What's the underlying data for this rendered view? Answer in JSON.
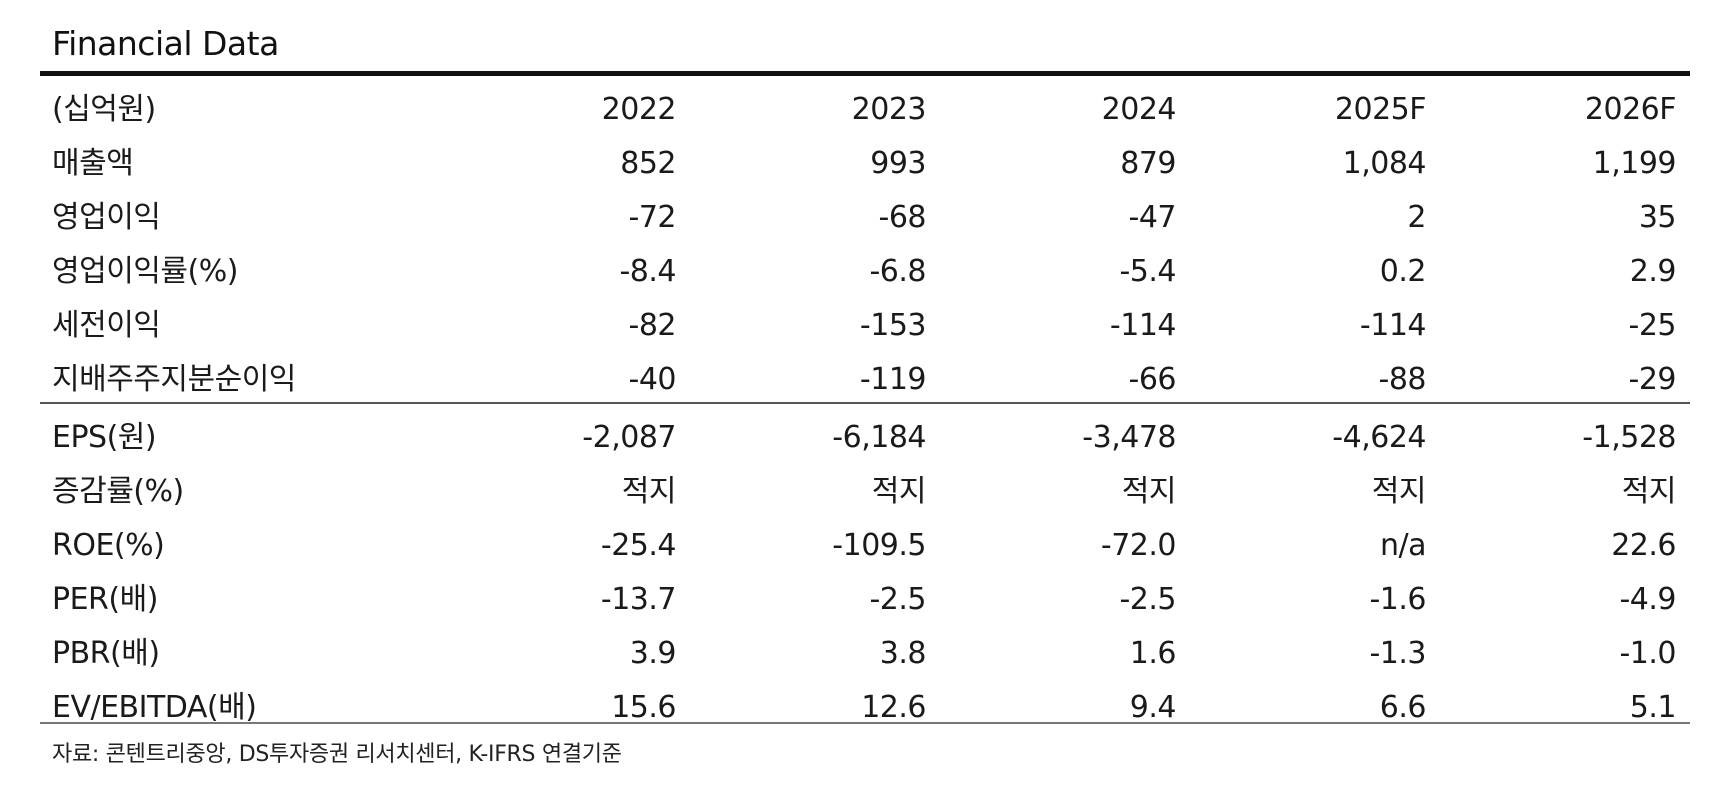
{
  "title": "Financial Data",
  "header": [
    "(십억원)",
    "2022",
    "2023",
    "2024",
    "2025F",
    "2026F"
  ],
  "rows_group1": [
    [
      "매출액",
      "852",
      "993",
      "879",
      "1,084",
      "1,199"
    ],
    [
      "영업이익",
      "-72",
      "-68",
      "-47",
      "2",
      "35"
    ],
    [
      "영업이익률(%)",
      "-8.4",
      "-6.8",
      "-5.4",
      "0.2",
      "2.9"
    ],
    [
      "세전이익",
      "-82",
      "-153",
      "-114",
      "-114",
      "-25"
    ],
    [
      "지배주주지분순이익",
      "-40",
      "-119",
      "-66",
      "-88",
      "-29"
    ]
  ],
  "rows_group2": [
    [
      "EPS(원)",
      "-2,087",
      "-6,184",
      "-3,478",
      "-4,624",
      "-1,528"
    ],
    [
      "증감률(%)",
      "적지",
      "적지",
      "적지",
      "적지",
      "적지"
    ],
    [
      "ROE(%)",
      "-25.4",
      "-109.5",
      "-72.0",
      "n/a",
      "22.6"
    ],
    [
      "PER(배)",
      "-13.7",
      "-2.5",
      "-2.5",
      "-1.6",
      "-4.9"
    ],
    [
      "PBR(배)",
      "3.9",
      "3.8",
      "1.6",
      "-1.3",
      "-1.0"
    ],
    [
      "EV/EBITDA(배)",
      "15.6",
      "12.6",
      "9.4",
      "6.6",
      "5.1"
    ]
  ],
  "source": "자료: 콘텐트리중앙, DS투자증권 리서치센터, K-IFRS 연결기준"
}
